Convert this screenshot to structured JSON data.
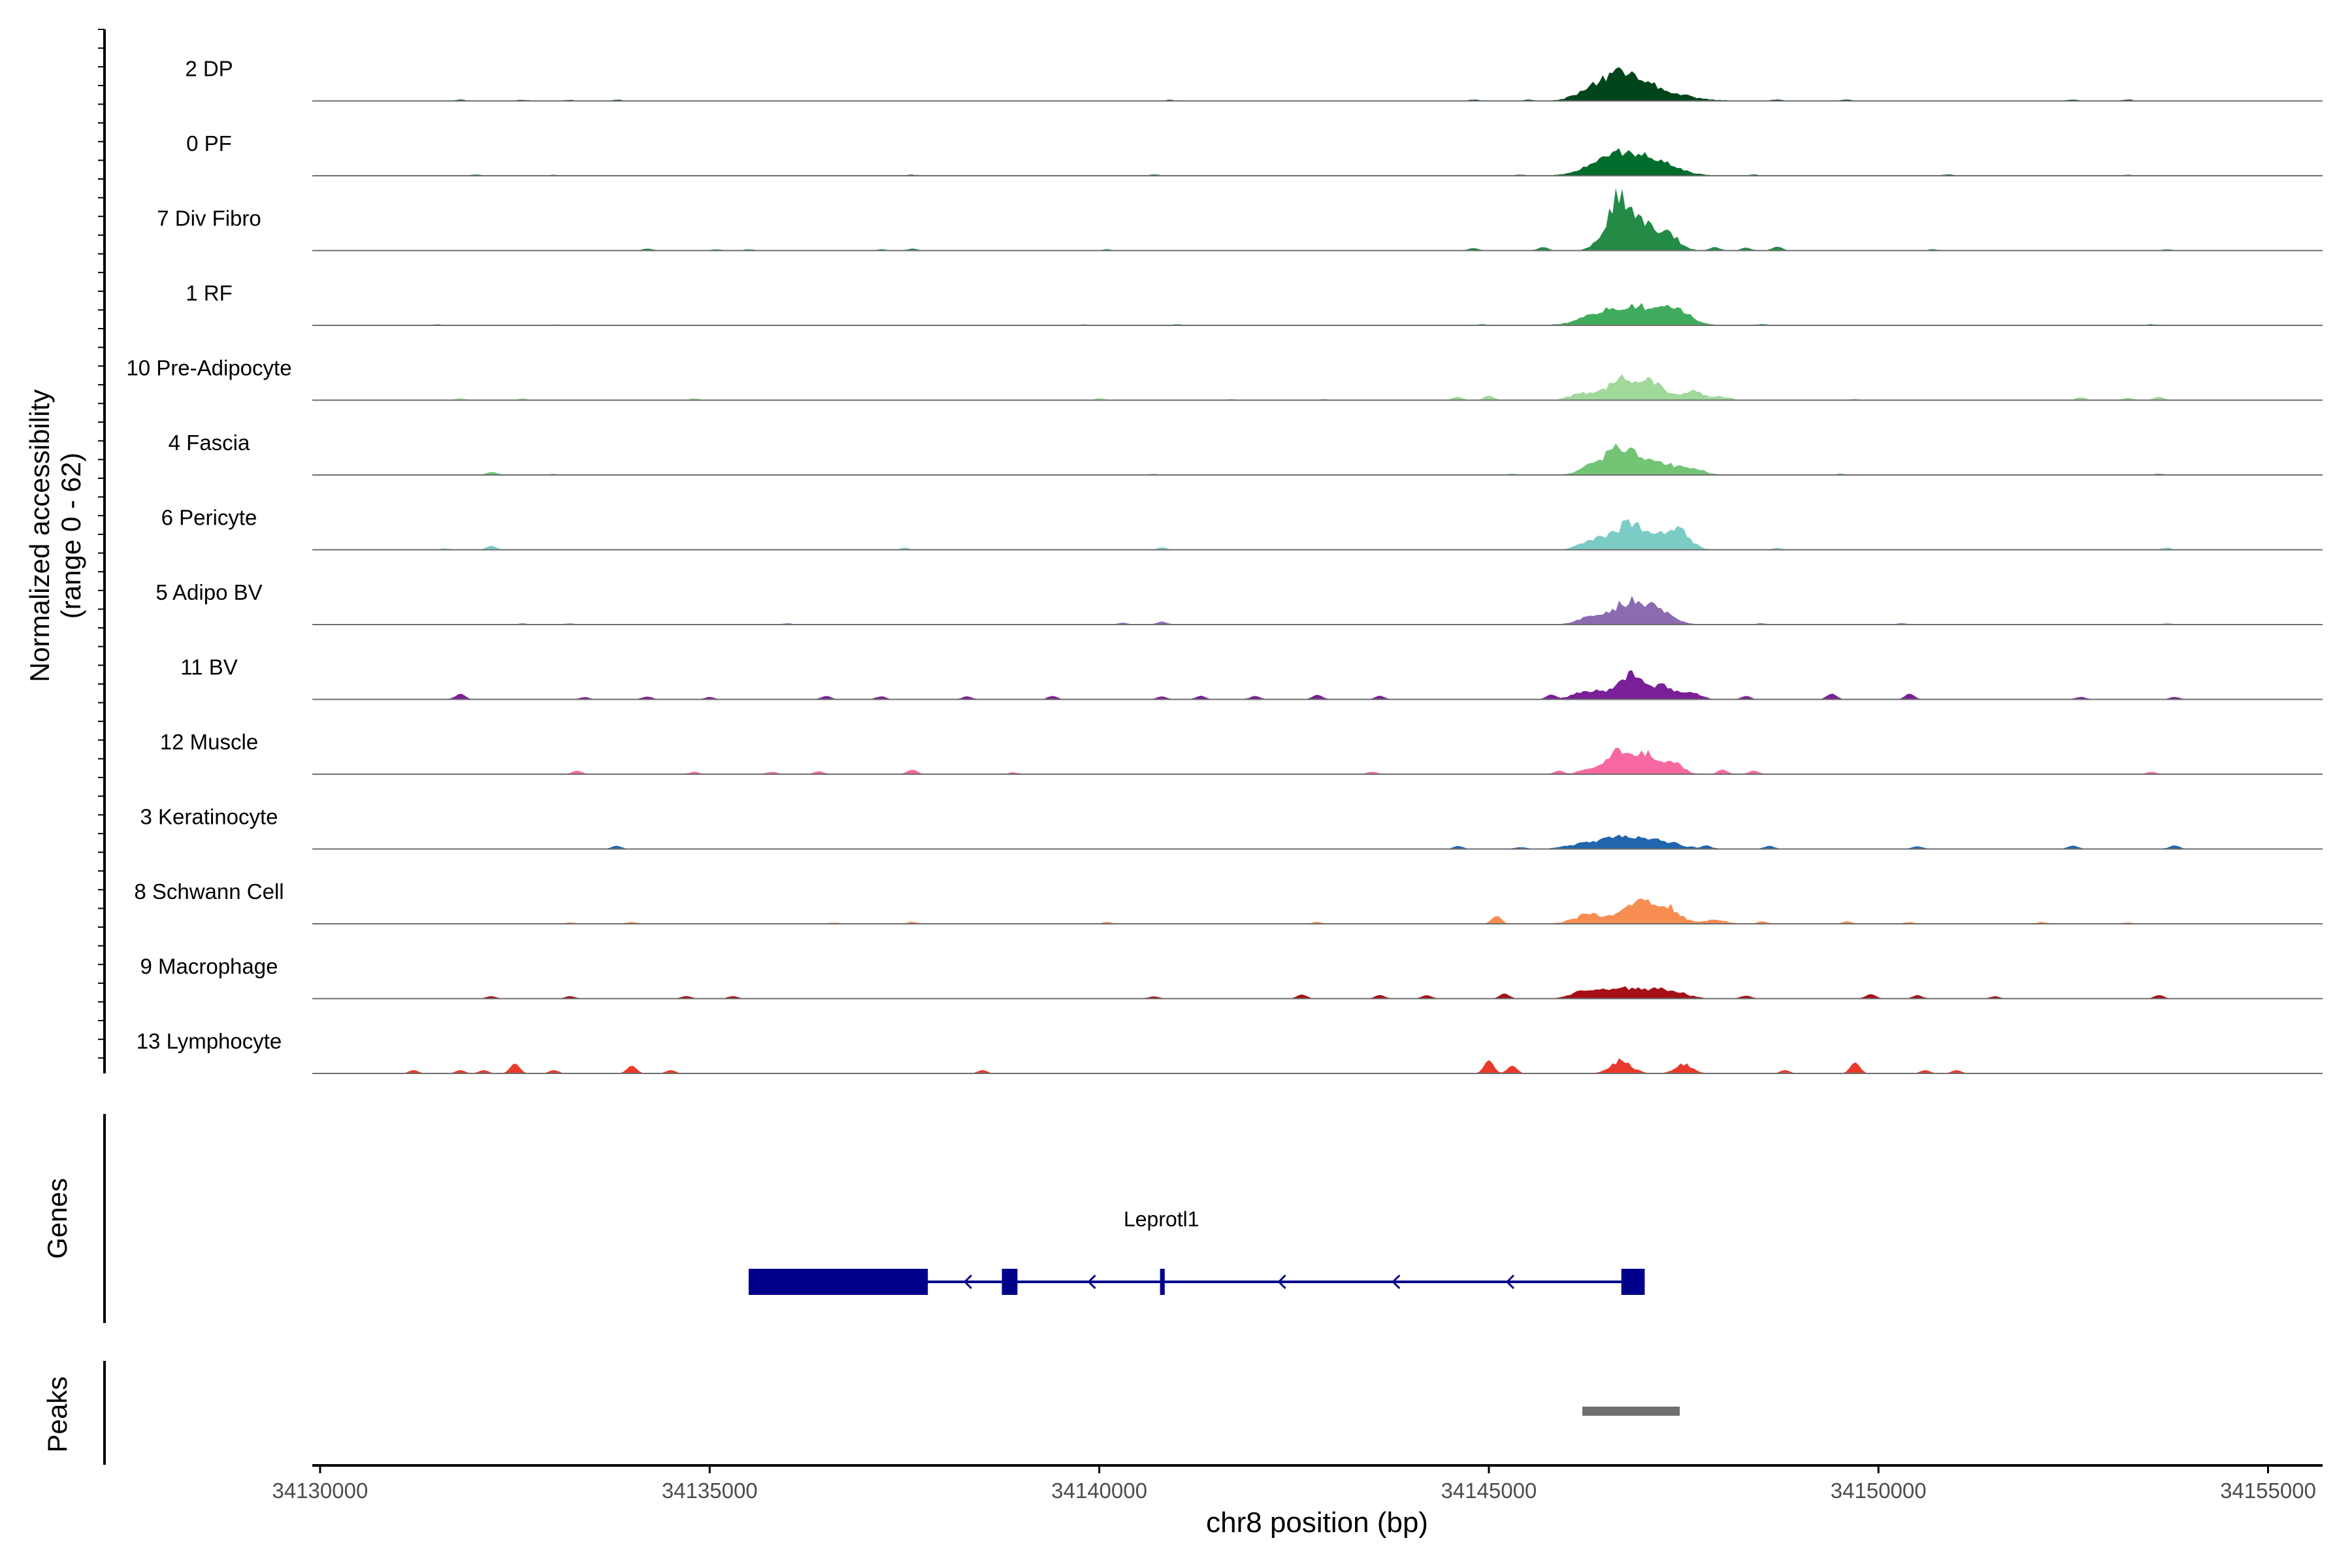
{
  "chart_data": {
    "type": "area",
    "title": "",
    "ylabel": "Normalized accessibility",
    "ylabel_range": "(range 0 - 62)",
    "y_range": [
      0,
      62
    ],
    "xlabel": "chr8 position (bp)",
    "xlim": [
      34129900,
      34155700
    ],
    "x_ticks": [
      34130000,
      34135000,
      34140000,
      34145000,
      34150000,
      34155000
    ],
    "x_tick_labels": [
      "34130000",
      "34135000",
      "34140000",
      "34145000",
      "34150000",
      "34155000"
    ],
    "tracks": [
      {
        "name": "2 DP",
        "color": "#00441b",
        "baseline": 0.4,
        "peaks": [
          [
            34146700,
            22,
            280
          ],
          [
            34147200,
            7,
            350
          ],
          [
            34146300,
            5,
            200
          ]
        ],
        "minor": [
          [
            34131800,
            1.0
          ],
          [
            34132600,
            0.8
          ],
          [
            34133200,
            0.8
          ],
          [
            34133800,
            1.0
          ],
          [
            34140900,
            0.8
          ],
          [
            34144800,
            1.0
          ],
          [
            34145500,
            0.8
          ],
          [
            34148700,
            1.0
          ],
          [
            34149600,
            1.0
          ],
          [
            34152500,
            1.0
          ],
          [
            34153200,
            1.0
          ]
        ]
      },
      {
        "name": "0 PF",
        "color": "#006d2c",
        "baseline": 0.4,
        "peaks": [
          [
            34146700,
            20,
            260
          ],
          [
            34147200,
            10,
            250
          ],
          [
            34146300,
            4,
            200
          ]
        ],
        "minor": [
          [
            34132000,
            0.8
          ],
          [
            34133000,
            0.8
          ],
          [
            34137600,
            0.8
          ],
          [
            34140700,
            1.0
          ],
          [
            34145400,
            0.8
          ],
          [
            34148400,
            1.0
          ],
          [
            34150900,
            1.0
          ],
          [
            34153200,
            0.8
          ]
        ]
      },
      {
        "name": "7 Div Fibro",
        "color": "#238b45",
        "baseline": 0.3,
        "peaks": [
          [
            34146650,
            45,
            110
          ],
          [
            34146950,
            28,
            150
          ],
          [
            34147300,
            14,
            140
          ],
          [
            34146400,
            6,
            100
          ]
        ],
        "minor": [
          [
            34134200,
            1.5
          ],
          [
            34135100,
            1.0
          ],
          [
            34135500,
            1.0
          ],
          [
            34137200,
            1.0
          ],
          [
            34137600,
            1.5
          ],
          [
            34140100,
            1.0
          ],
          [
            34144800,
            2.0
          ],
          [
            34145700,
            3.0
          ],
          [
            34147900,
            3.0
          ],
          [
            34148300,
            2.5
          ],
          [
            34148700,
            3.5
          ],
          [
            34150700,
            1.0
          ],
          [
            34153700,
            1.0
          ]
        ]
      },
      {
        "name": "1 RF",
        "color": "#41ab5d",
        "baseline": 0.4,
        "peaks": [
          [
            34146800,
            18,
            350
          ],
          [
            34147400,
            12,
            180
          ],
          [
            34146300,
            3,
            200
          ]
        ],
        "minor": [
          [
            34131500,
            0.8
          ],
          [
            34133000,
            0.6
          ],
          [
            34139800,
            0.6
          ],
          [
            34141000,
            0.8
          ],
          [
            34144900,
            0.8
          ],
          [
            34148500,
            1.0
          ],
          [
            34153500,
            0.8
          ]
        ]
      },
      {
        "name": "10 Pre-Adipocyte",
        "color": "#a1d99b",
        "baseline": 0.3,
        "peaks": [
          [
            34146700,
            18,
            180
          ],
          [
            34147100,
            16,
            140
          ],
          [
            34147600,
            8,
            150
          ],
          [
            34146200,
            6,
            150
          ],
          [
            34148000,
            3,
            100
          ]
        ],
        "minor": [
          [
            34131800,
            1.5
          ],
          [
            34132600,
            1.5
          ],
          [
            34134800,
            1.5
          ],
          [
            34140000,
            1.5
          ],
          [
            34141700,
            1.0
          ],
          [
            34142900,
            1.0
          ],
          [
            34144600,
            3.0
          ],
          [
            34145000,
            4.0
          ],
          [
            34149700,
            1.0
          ],
          [
            34152600,
            2.5
          ],
          [
            34153200,
            2.0
          ],
          [
            34153600,
            3.0
          ]
        ]
      },
      {
        "name": "4 Fascia",
        "color": "#74c476",
        "baseline": 0.4,
        "peaks": [
          [
            34146700,
            24,
            220
          ],
          [
            34147200,
            10,
            180
          ],
          [
            34147600,
            6,
            150
          ],
          [
            34146300,
            5,
            150
          ]
        ],
        "minor": [
          [
            34132200,
            2.5
          ],
          [
            34133000,
            0.8
          ],
          [
            34140700,
            0.8
          ],
          [
            34145300,
            0.8
          ],
          [
            34149500,
            1.0
          ],
          [
            34153600,
            1.0
          ]
        ]
      },
      {
        "name": "6 Pericyte",
        "color": "#7bccc4",
        "baseline": 0.3,
        "peaks": [
          [
            34146800,
            22,
            250
          ],
          [
            34147400,
            18,
            160
          ],
          [
            34146300,
            6,
            150
          ]
        ],
        "minor": [
          [
            34131600,
            1.0
          ],
          [
            34132200,
            3.5
          ],
          [
            34137500,
            1.5
          ],
          [
            34140800,
            2.0
          ],
          [
            34148700,
            1.5
          ],
          [
            34153700,
            1.5
          ]
        ]
      },
      {
        "name": "5 Adipo BV",
        "color": "#8c6bb1",
        "baseline": 0.3,
        "peaks": [
          [
            34146800,
            20,
            220
          ],
          [
            34147200,
            10,
            180
          ],
          [
            34146300,
            6,
            160
          ]
        ],
        "minor": [
          [
            34132600,
            1.0
          ],
          [
            34133200,
            1.0
          ],
          [
            34136000,
            1.0
          ],
          [
            34140300,
            1.5
          ],
          [
            34140800,
            2.5
          ],
          [
            34148500,
            1.0
          ],
          [
            34150300,
            1.0
          ],
          [
            34153700,
            1.0
          ]
        ]
      },
      {
        "name": "11 BV",
        "color": "#7a1f97",
        "baseline": 0.3,
        "peaks": [
          [
            34146800,
            22,
            150
          ],
          [
            34147200,
            12,
            160
          ],
          [
            34146300,
            8,
            180
          ],
          [
            34147600,
            5,
            120
          ]
        ],
        "minor": [
          [
            34131800,
            5.0
          ],
          [
            34133400,
            2.0
          ],
          [
            34134200,
            2.5
          ],
          [
            34135000,
            2.0
          ],
          [
            34136500,
            3.0
          ],
          [
            34137200,
            2.5
          ],
          [
            34138300,
            2.5
          ],
          [
            34139400,
            3.0
          ],
          [
            34140800,
            2.5
          ],
          [
            34141300,
            3.0
          ],
          [
            34142000,
            3.0
          ],
          [
            34142800,
            4.0
          ],
          [
            34143600,
            3.0
          ],
          [
            34145800,
            4.0
          ],
          [
            34148300,
            3.0
          ],
          [
            34149400,
            5.0
          ],
          [
            34150400,
            5.0
          ],
          [
            34152600,
            2.0
          ],
          [
            34153800,
            2.0
          ]
        ]
      },
      {
        "name": "12 Muscle",
        "color": "#f768a1",
        "baseline": 0.3,
        "peaks": [
          [
            34146650,
            22,
            130
          ],
          [
            34147000,
            19,
            130
          ],
          [
            34147350,
            10,
            130
          ],
          [
            34146300,
            5,
            120
          ]
        ],
        "minor": [
          [
            34133300,
            3.0
          ],
          [
            34134800,
            2.0
          ],
          [
            34135800,
            2.0
          ],
          [
            34136400,
            2.5
          ],
          [
            34137600,
            4.0
          ],
          [
            34138900,
            1.5
          ],
          [
            34143500,
            2.0
          ],
          [
            34145900,
            3.0
          ],
          [
            34148000,
            4.0
          ],
          [
            34148400,
            3.0
          ],
          [
            34153500,
            2.0
          ]
        ]
      },
      {
        "name": "3 Keratinocyte",
        "color": "#2166ac",
        "baseline": 0.4,
        "peaks": [
          [
            34146700,
            10,
            250
          ],
          [
            34147200,
            6,
            250
          ],
          [
            34146200,
            4,
            200
          ]
        ],
        "minor": [
          [
            34133800,
            2.5
          ],
          [
            34144600,
            2.5
          ],
          [
            34145400,
            1.5
          ],
          [
            34147800,
            2.5
          ],
          [
            34148600,
            2.5
          ],
          [
            34150500,
            2.0
          ],
          [
            34152500,
            3.0
          ],
          [
            34153800,
            3.0
          ]
        ]
      },
      {
        "name": "8 Schwann Cell",
        "color": "#f88d52",
        "baseline": 0.3,
        "peaks": [
          [
            34146900,
            20,
            180
          ],
          [
            34147300,
            14,
            160
          ],
          [
            34146300,
            8,
            200
          ],
          [
            34147900,
            3,
            150
          ]
        ],
        "minor": [
          [
            34133200,
            1.0
          ],
          [
            34134000,
            1.5
          ],
          [
            34136600,
            1.0
          ],
          [
            34137600,
            1.5
          ],
          [
            34140100,
            1.5
          ],
          [
            34142800,
            1.5
          ],
          [
            34145100,
            7.0
          ],
          [
            34148500,
            2.0
          ],
          [
            34149600,
            2.0
          ],
          [
            34150400,
            1.5
          ],
          [
            34152100,
            1.5
          ],
          [
            34153200,
            1.0
          ]
        ]
      },
      {
        "name": "9 Macrophage",
        "color": "#a50f15",
        "baseline": 0.3,
        "peaks": [
          [
            34146700,
            9,
            300
          ],
          [
            34147300,
            7,
            200
          ],
          [
            34146200,
            5,
            150
          ]
        ],
        "minor": [
          [
            34132200,
            2.0
          ],
          [
            34133200,
            2.0
          ],
          [
            34134700,
            2.0
          ],
          [
            34135300,
            2.0
          ],
          [
            34140700,
            2.0
          ],
          [
            34142600,
            3.5
          ],
          [
            34143600,
            3.0
          ],
          [
            34144200,
            3.0
          ],
          [
            34145200,
            4.5
          ],
          [
            34148300,
            2.5
          ],
          [
            34149900,
            4.0
          ],
          [
            34150500,
            3.0
          ],
          [
            34151500,
            2.0
          ],
          [
            34153600,
            3.0
          ]
        ]
      },
      {
        "name": "13 Lymphocyte",
        "color": "#e8392b",
        "baseline": 0.0,
        "peaks": [
          [
            34146700,
            12,
            130
          ],
          [
            34147500,
            8,
            110
          ]
        ],
        "minor": [
          [
            34131200,
            3.0
          ],
          [
            34131800,
            3.0
          ],
          [
            34132100,
            3.0
          ],
          [
            34132500,
            9.0
          ],
          [
            34133000,
            3.0
          ],
          [
            34134000,
            7.0
          ],
          [
            34134500,
            3.0
          ],
          [
            34138500,
            3.0
          ],
          [
            34145000,
            12.0
          ],
          [
            34145300,
            7.0
          ],
          [
            34148800,
            3.0
          ],
          [
            34149700,
            10.0
          ],
          [
            34150600,
            3.0
          ],
          [
            34151000,
            3.0
          ]
        ]
      }
    ],
    "genes": {
      "label": "Genes",
      "name": "Leprotl1",
      "strand": "-",
      "start": 34135500,
      "end": 34147000,
      "exons": [
        [
          34135500,
          34137800
        ],
        [
          34138750,
          34138950
        ],
        [
          34140780,
          34140840
        ],
        [
          34146700,
          34147000
        ]
      ]
    },
    "peaks": {
      "label": "Peaks",
      "regions": [
        [
          34146200,
          34147450
        ]
      ]
    }
  }
}
